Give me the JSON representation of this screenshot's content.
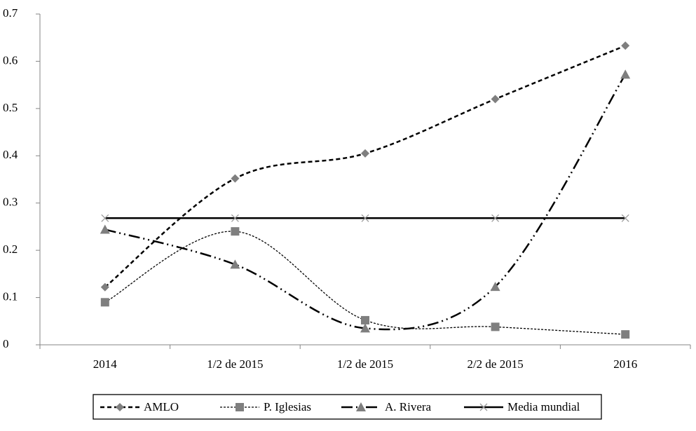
{
  "chart_data": {
    "type": "line",
    "categories": [
      "2014",
      "1/2 de 2015",
      "1/2 de 2015",
      "2/2 de 2015",
      "2016"
    ],
    "series": [
      {
        "name": "AMLO",
        "color": "#000000",
        "marker": "diamond",
        "marker_color": "#7f7f7f",
        "dash": "6,4",
        "smooth": true,
        "values": [
          0.122,
          0.352,
          0.405,
          0.52,
          0.633
        ]
      },
      {
        "name": "P. Iglesias",
        "color": "#000000",
        "marker": "square",
        "marker_color": "#7f7f7f",
        "dash": "3,2",
        "smooth": true,
        "values": [
          0.09,
          0.24,
          0.052,
          0.038,
          0.022
        ]
      },
      {
        "name": "A. Rivera",
        "color": "#000000",
        "marker": "triangle",
        "marker_color": "#7f7f7f",
        "dash": "16,5,2,5,2,5",
        "smooth": true,
        "values": [
          0.244,
          0.17,
          0.035,
          0.123,
          0.572
        ]
      },
      {
        "name": "Media mundial",
        "color": "#000000",
        "marker": "x",
        "marker_color": "#9a9a9a",
        "dash": "none",
        "smooth": false,
        "values": [
          0.268,
          0.268,
          0.268,
          0.268,
          0.268
        ]
      }
    ],
    "ylim": [
      0,
      0.7
    ],
    "yticks": [
      0,
      0.1,
      0.2,
      0.3,
      0.4,
      0.5,
      0.6,
      0.7
    ],
    "grid": false,
    "legend": "bottom"
  }
}
